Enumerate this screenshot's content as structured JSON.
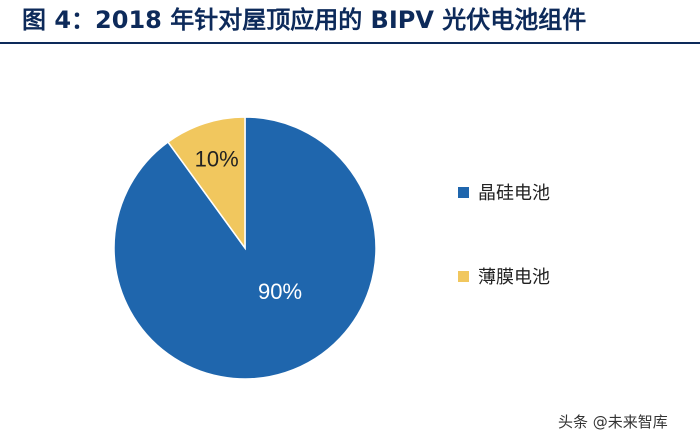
{
  "title": "图 4：2018 年针对屋顶应用的 BIPV 光伏电池组件",
  "watermark": "头条 @未来智库",
  "chart_data": {
    "type": "pie",
    "title": "",
    "slices": [
      {
        "name": "晶硅电池",
        "value": 90,
        "label": "90%",
        "color": "#1f66ad"
      },
      {
        "name": "薄膜电池",
        "value": 10,
        "label": "10%",
        "color": "#f1c75e"
      }
    ],
    "start": "top, clockwise from 10% slice",
    "legend_position": "right"
  },
  "legend": {
    "items": [
      {
        "label": "晶硅电池",
        "color": "#1f66ad"
      },
      {
        "label": "薄膜电池",
        "color": "#f1c75e"
      }
    ]
  }
}
